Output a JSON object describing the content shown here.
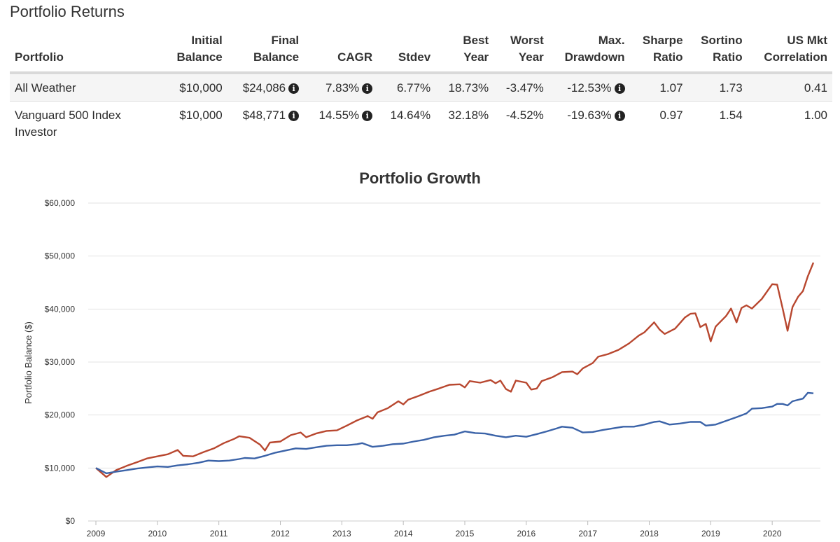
{
  "section_title": "Portfolio Returns",
  "table": {
    "headers": [
      [
        "",
        "Portfolio"
      ],
      [
        "Initial",
        "Balance"
      ],
      [
        "Final",
        "Balance"
      ],
      [
        "",
        "CAGR"
      ],
      [
        "",
        "Stdev"
      ],
      [
        "Best",
        "Year"
      ],
      [
        "Worst",
        "Year"
      ],
      [
        "Max.",
        "Drawdown"
      ],
      [
        "Sharpe",
        "Ratio"
      ],
      [
        "Sortino",
        "Ratio"
      ],
      [
        "US Mkt",
        "Correlation"
      ]
    ],
    "rows": [
      {
        "portfolio": "All Weather",
        "initial_balance": "$10,000",
        "final_balance": "$24,086",
        "cagr": "7.83%",
        "stdev": "6.77%",
        "best_year": "18.73%",
        "worst_year": "-3.47%",
        "max_drawdown": "-12.53%",
        "sharpe": "1.07",
        "sortino": "1.73",
        "correlation": "0.41"
      },
      {
        "portfolio": "Vanguard 500 Index Investor",
        "initial_balance": "$10,000",
        "final_balance": "$48,771",
        "cagr": "14.55%",
        "stdev": "14.64%",
        "best_year": "32.18%",
        "worst_year": "-4.52%",
        "max_drawdown": "-19.63%",
        "sharpe": "0.97",
        "sortino": "1.54",
        "correlation": "1.00"
      }
    ],
    "info_icon": "info-circle-icon"
  },
  "chart_data": {
    "type": "line",
    "title": "Portfolio Growth",
    "ylabel": "Portfolio Balance ($)",
    "xlabel": "",
    "ylim": [
      0,
      60000
    ],
    "yticks": [
      0,
      10000,
      20000,
      30000,
      40000,
      50000,
      60000
    ],
    "ytick_labels": [
      "$0",
      "$10,000",
      "$20,000",
      "$30,000",
      "$40,000",
      "$50,000",
      "$60,000"
    ],
    "xlim": [
      2009,
      2020.6
    ],
    "xticks": [
      "2009",
      "2010",
      "2011",
      "2012",
      "2013",
      "2014",
      "2015",
      "2016",
      "2017",
      "2018",
      "2019",
      "2020"
    ],
    "grid": true,
    "legend": "none",
    "series": [
      {
        "color": "#b8472f",
        "points": [
          [
            2009.0,
            10000
          ],
          [
            2009.17,
            8300
          ],
          [
            2009.33,
            9600
          ],
          [
            2009.5,
            10400
          ],
          [
            2009.67,
            11100
          ],
          [
            2009.83,
            11800
          ],
          [
            2010.0,
            12200
          ],
          [
            2010.17,
            12600
          ],
          [
            2010.33,
            13400
          ],
          [
            2010.42,
            12300
          ],
          [
            2010.58,
            12200
          ],
          [
            2010.75,
            13000
          ],
          [
            2010.92,
            13700
          ],
          [
            2011.08,
            14700
          ],
          [
            2011.25,
            15500
          ],
          [
            2011.33,
            16000
          ],
          [
            2011.5,
            15700
          ],
          [
            2011.67,
            14400
          ],
          [
            2011.75,
            13300
          ],
          [
            2011.83,
            14800
          ],
          [
            2012.0,
            15000
          ],
          [
            2012.17,
            16200
          ],
          [
            2012.33,
            16700
          ],
          [
            2012.42,
            15800
          ],
          [
            2012.58,
            16500
          ],
          [
            2012.75,
            17000
          ],
          [
            2012.92,
            17100
          ],
          [
            2013.08,
            18000
          ],
          [
            2013.25,
            19000
          ],
          [
            2013.42,
            19800
          ],
          [
            2013.5,
            19300
          ],
          [
            2013.58,
            20500
          ],
          [
            2013.75,
            21300
          ],
          [
            2013.92,
            22600
          ],
          [
            2014.0,
            22000
          ],
          [
            2014.08,
            22900
          ],
          [
            2014.25,
            23600
          ],
          [
            2014.42,
            24400
          ],
          [
            2014.58,
            25000
          ],
          [
            2014.75,
            25700
          ],
          [
            2014.92,
            25800
          ],
          [
            2015.0,
            25200
          ],
          [
            2015.08,
            26400
          ],
          [
            2015.25,
            26100
          ],
          [
            2015.42,
            26600
          ],
          [
            2015.5,
            26000
          ],
          [
            2015.58,
            26500
          ],
          [
            2015.67,
            24900
          ],
          [
            2015.75,
            24400
          ],
          [
            2015.83,
            26500
          ],
          [
            2016.0,
            26100
          ],
          [
            2016.08,
            24800
          ],
          [
            2016.17,
            25000
          ],
          [
            2016.25,
            26400
          ],
          [
            2016.42,
            27100
          ],
          [
            2016.58,
            28100
          ],
          [
            2016.75,
            28200
          ],
          [
            2016.83,
            27700
          ],
          [
            2016.92,
            28800
          ],
          [
            2017.08,
            29800
          ],
          [
            2017.17,
            31000
          ],
          [
            2017.33,
            31500
          ],
          [
            2017.5,
            32300
          ],
          [
            2017.67,
            33500
          ],
          [
            2017.83,
            35000
          ],
          [
            2017.92,
            35600
          ],
          [
            2018.08,
            37500
          ],
          [
            2018.17,
            36100
          ],
          [
            2018.25,
            35300
          ],
          [
            2018.42,
            36300
          ],
          [
            2018.58,
            38400
          ],
          [
            2018.67,
            39100
          ],
          [
            2018.75,
            39200
          ],
          [
            2018.83,
            36600
          ],
          [
            2018.92,
            37200
          ],
          [
            2019.0,
            33900
          ],
          [
            2019.08,
            36700
          ],
          [
            2019.25,
            38700
          ],
          [
            2019.33,
            40100
          ],
          [
            2019.42,
            37500
          ],
          [
            2019.5,
            40200
          ],
          [
            2019.58,
            40700
          ],
          [
            2019.67,
            40100
          ],
          [
            2019.83,
            41900
          ],
          [
            2020.0,
            44700
          ],
          [
            2020.08,
            44600
          ],
          [
            2020.17,
            40100
          ],
          [
            2020.25,
            35900
          ],
          [
            2020.33,
            40400
          ],
          [
            2020.42,
            42300
          ],
          [
            2020.5,
            43400
          ],
          [
            2020.58,
            46200
          ],
          [
            2020.67,
            48771
          ]
        ]
      },
      {
        "color": "#3b63a8",
        "points": [
          [
            2009.0,
            10000
          ],
          [
            2009.17,
            9000
          ],
          [
            2009.33,
            9300
          ],
          [
            2009.5,
            9600
          ],
          [
            2009.67,
            9900
          ],
          [
            2009.83,
            10100
          ],
          [
            2010.0,
            10300
          ],
          [
            2010.17,
            10200
          ],
          [
            2010.33,
            10500
          ],
          [
            2010.5,
            10700
          ],
          [
            2010.67,
            11000
          ],
          [
            2010.83,
            11400
          ],
          [
            2011.0,
            11300
          ],
          [
            2011.17,
            11400
          ],
          [
            2011.33,
            11700
          ],
          [
            2011.42,
            11900
          ],
          [
            2011.58,
            11800
          ],
          [
            2011.75,
            12300
          ],
          [
            2011.92,
            12900
          ],
          [
            2012.08,
            13300
          ],
          [
            2012.25,
            13700
          ],
          [
            2012.42,
            13600
          ],
          [
            2012.58,
            13900
          ],
          [
            2012.75,
            14200
          ],
          [
            2012.92,
            14300
          ],
          [
            2013.08,
            14300
          ],
          [
            2013.25,
            14500
          ],
          [
            2013.33,
            14700
          ],
          [
            2013.5,
            14000
          ],
          [
            2013.67,
            14200
          ],
          [
            2013.83,
            14500
          ],
          [
            2014.0,
            14600
          ],
          [
            2014.17,
            15000
          ],
          [
            2014.33,
            15300
          ],
          [
            2014.5,
            15800
          ],
          [
            2014.67,
            16100
          ],
          [
            2014.83,
            16300
          ],
          [
            2015.0,
            16900
          ],
          [
            2015.17,
            16600
          ],
          [
            2015.33,
            16500
          ],
          [
            2015.5,
            16100
          ],
          [
            2015.67,
            15800
          ],
          [
            2015.83,
            16100
          ],
          [
            2016.0,
            15900
          ],
          [
            2016.17,
            16400
          ],
          [
            2016.33,
            16900
          ],
          [
            2016.5,
            17500
          ],
          [
            2016.58,
            17800
          ],
          [
            2016.75,
            17600
          ],
          [
            2016.92,
            16700
          ],
          [
            2017.08,
            16800
          ],
          [
            2017.25,
            17200
          ],
          [
            2017.42,
            17500
          ],
          [
            2017.58,
            17800
          ],
          [
            2017.75,
            17800
          ],
          [
            2017.92,
            18200
          ],
          [
            2018.08,
            18700
          ],
          [
            2018.17,
            18800
          ],
          [
            2018.33,
            18200
          ],
          [
            2018.5,
            18400
          ],
          [
            2018.67,
            18700
          ],
          [
            2018.83,
            18700
          ],
          [
            2018.92,
            18000
          ],
          [
            2019.08,
            18200
          ],
          [
            2019.25,
            18900
          ],
          [
            2019.42,
            19600
          ],
          [
            2019.58,
            20300
          ],
          [
            2019.67,
            21200
          ],
          [
            2019.83,
            21300
          ],
          [
            2020.0,
            21600
          ],
          [
            2020.08,
            22100
          ],
          [
            2020.17,
            22100
          ],
          [
            2020.25,
            21800
          ],
          [
            2020.33,
            22600
          ],
          [
            2020.5,
            23100
          ],
          [
            2020.58,
            24200
          ],
          [
            2020.67,
            24086
          ]
        ]
      }
    ]
  }
}
